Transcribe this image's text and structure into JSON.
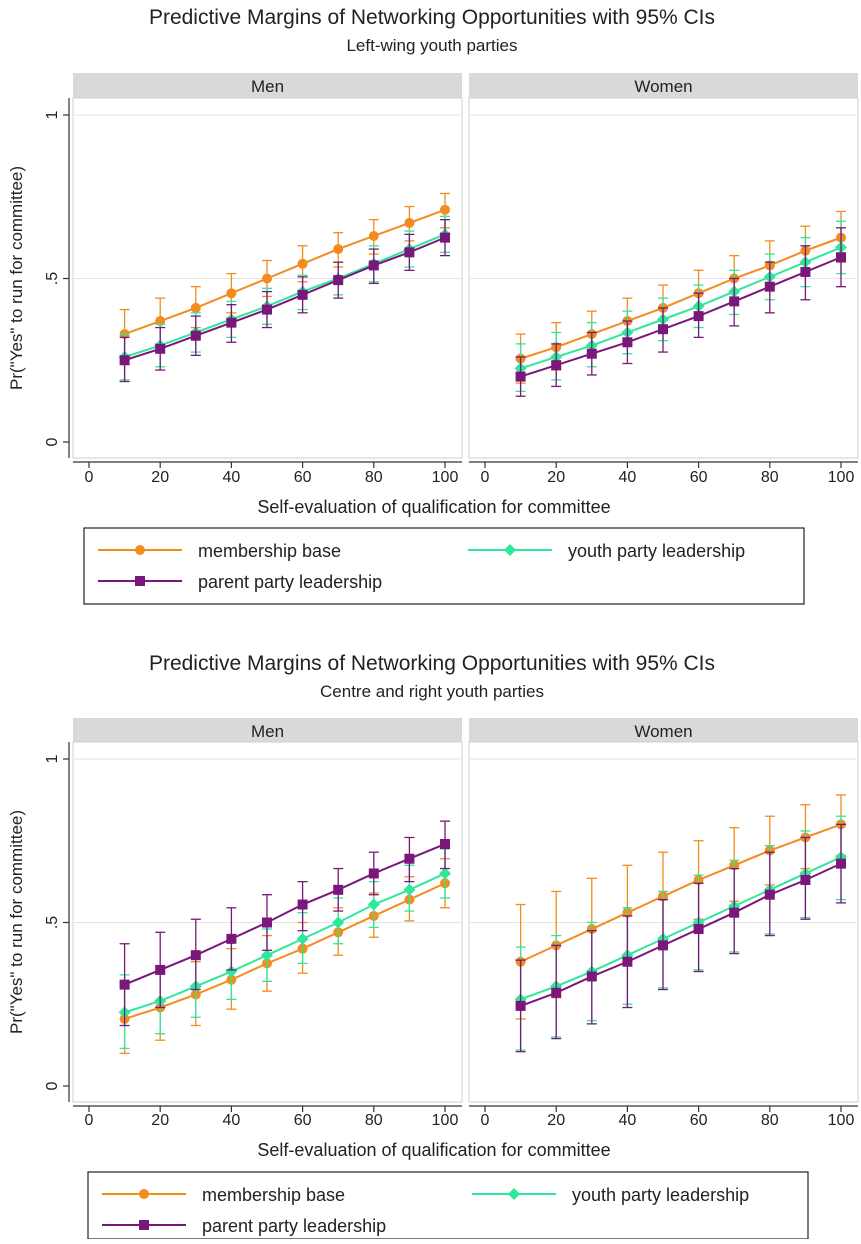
{
  "series_styles": [
    {
      "key": "membership",
      "color": "#f28c1e",
      "marker": "circle"
    },
    {
      "key": "youth",
      "color": "#2ee89a",
      "marker": "diamond"
    },
    {
      "key": "parent",
      "color": "#7a177a",
      "marker": "square"
    }
  ],
  "chart_data": [
    {
      "type": "line",
      "title": "Predictive Margins of Networking Opportunities with 95% CIs",
      "subtitle": "Left-wing youth parties",
      "xlabel": "Self-evaluation of qualification for committee",
      "ylabel": "Pr(\"Yes\" to run for committee)",
      "xlim": [
        0,
        100
      ],
      "ylim": [
        0,
        1
      ],
      "xticks": [
        0,
        20,
        40,
        60,
        80,
        100
      ],
      "yticks": [
        0,
        0.5,
        1
      ],
      "ytick_labels": [
        "0",
        ".5",
        "1"
      ],
      "grid": true,
      "legend_position": "bottom",
      "x": [
        10,
        20,
        30,
        40,
        50,
        60,
        70,
        80,
        90,
        100
      ],
      "legend": [
        "membership base",
        "youth party leadership",
        "parent party leadership"
      ],
      "panels": [
        {
          "label": "Men",
          "series": [
            {
              "name": "membership base",
              "values": [
                0.33,
                0.37,
                0.41,
                0.455,
                0.5,
                0.545,
                0.59,
                0.63,
                0.67,
                0.71
              ],
              "lower": [
                0.26,
                0.3,
                0.35,
                0.395,
                0.445,
                0.49,
                0.535,
                0.575,
                0.615,
                0.655
              ],
              "upper": [
                0.405,
                0.44,
                0.475,
                0.515,
                0.555,
                0.6,
                0.64,
                0.68,
                0.72,
                0.76
              ]
            },
            {
              "name": "youth party leadership",
              "values": [
                0.26,
                0.295,
                0.335,
                0.375,
                0.415,
                0.46,
                0.5,
                0.545,
                0.59,
                0.635
              ],
              "lower": [
                0.19,
                0.23,
                0.275,
                0.32,
                0.36,
                0.405,
                0.45,
                0.49,
                0.535,
                0.58
              ],
              "upper": [
                0.33,
                0.36,
                0.395,
                0.43,
                0.47,
                0.51,
                0.55,
                0.6,
                0.645,
                0.69
              ]
            },
            {
              "name": "parent party leadership",
              "values": [
                0.25,
                0.285,
                0.325,
                0.365,
                0.405,
                0.45,
                0.495,
                0.54,
                0.58,
                0.625
              ],
              "lower": [
                0.185,
                0.22,
                0.265,
                0.305,
                0.35,
                0.395,
                0.44,
                0.485,
                0.525,
                0.57
              ],
              "upper": [
                0.32,
                0.35,
                0.385,
                0.42,
                0.46,
                0.505,
                0.55,
                0.59,
                0.635,
                0.68
              ]
            }
          ]
        },
        {
          "label": "Women",
          "series": [
            {
              "name": "membership base",
              "values": [
                0.255,
                0.29,
                0.33,
                0.37,
                0.41,
                0.455,
                0.5,
                0.54,
                0.585,
                0.625
              ],
              "lower": [
                0.18,
                0.22,
                0.26,
                0.3,
                0.345,
                0.385,
                0.43,
                0.47,
                0.51,
                0.55
              ],
              "upper": [
                0.33,
                0.365,
                0.4,
                0.44,
                0.48,
                0.525,
                0.57,
                0.615,
                0.66,
                0.705
              ]
            },
            {
              "name": "youth party leadership",
              "values": [
                0.225,
                0.26,
                0.295,
                0.335,
                0.375,
                0.415,
                0.46,
                0.505,
                0.55,
                0.595
              ],
              "lower": [
                0.155,
                0.19,
                0.23,
                0.27,
                0.31,
                0.35,
                0.39,
                0.435,
                0.475,
                0.515
              ],
              "upper": [
                0.3,
                0.335,
                0.365,
                0.4,
                0.44,
                0.48,
                0.525,
                0.575,
                0.625,
                0.675
              ]
            },
            {
              "name": "parent party leadership",
              "values": [
                0.2,
                0.235,
                0.27,
                0.305,
                0.345,
                0.385,
                0.43,
                0.475,
                0.52,
                0.565
              ],
              "lower": [
                0.14,
                0.17,
                0.205,
                0.24,
                0.275,
                0.32,
                0.355,
                0.395,
                0.435,
                0.475
              ],
              "upper": [
                0.26,
                0.3,
                0.335,
                0.37,
                0.41,
                0.455,
                0.5,
                0.55,
                0.6,
                0.655
              ]
            }
          ]
        }
      ]
    },
    {
      "type": "line",
      "title": "Predictive Margins of Networking Opportunities with 95% CIs",
      "subtitle": "Centre and right youth parties",
      "xlabel": "Self-evaluation of qualification for committee",
      "ylabel": "Pr(\"Yes\" to run for committee)",
      "xlim": [
        0,
        100
      ],
      "ylim": [
        0,
        1
      ],
      "xticks": [
        0,
        20,
        40,
        60,
        80,
        100
      ],
      "yticks": [
        0,
        0.5,
        1
      ],
      "ytick_labels": [
        "0",
        ".5",
        "1"
      ],
      "grid": true,
      "legend_position": "bottom",
      "x": [
        10,
        20,
        30,
        40,
        50,
        60,
        70,
        80,
        90,
        100
      ],
      "legend": [
        "membership base",
        "youth party leadership",
        "parent party leadership"
      ],
      "panels": [
        {
          "label": "Men",
          "series": [
            {
              "name": "membership base",
              "values": [
                0.205,
                0.24,
                0.28,
                0.325,
                0.375,
                0.42,
                0.47,
                0.52,
                0.57,
                0.62
              ],
              "lower": [
                0.1,
                0.14,
                0.185,
                0.235,
                0.29,
                0.345,
                0.4,
                0.455,
                0.505,
                0.545
              ],
              "upper": [
                0.31,
                0.345,
                0.38,
                0.42,
                0.46,
                0.5,
                0.545,
                0.59,
                0.64,
                0.695
              ]
            },
            {
              "name": "youth party leadership",
              "values": [
                0.225,
                0.26,
                0.305,
                0.35,
                0.4,
                0.45,
                0.5,
                0.555,
                0.6,
                0.65
              ],
              "lower": [
                0.115,
                0.16,
                0.21,
                0.265,
                0.32,
                0.375,
                0.435,
                0.485,
                0.535,
                0.575
              ],
              "upper": [
                0.34,
                0.365,
                0.4,
                0.44,
                0.48,
                0.53,
                0.575,
                0.625,
                0.675,
                0.725
              ]
            },
            {
              "name": "parent party leadership",
              "values": [
                0.31,
                0.355,
                0.4,
                0.45,
                0.5,
                0.555,
                0.6,
                0.65,
                0.695,
                0.74
              ],
              "lower": [
                0.185,
                0.24,
                0.295,
                0.355,
                0.415,
                0.475,
                0.535,
                0.585,
                0.625,
                0.665
              ],
              "upper": [
                0.435,
                0.47,
                0.51,
                0.545,
                0.585,
                0.625,
                0.665,
                0.715,
                0.76,
                0.81
              ]
            }
          ]
        },
        {
          "label": "Women",
          "series": [
            {
              "name": "membership base",
              "values": [
                0.38,
                0.43,
                0.48,
                0.53,
                0.58,
                0.63,
                0.675,
                0.72,
                0.76,
                0.8
              ],
              "lower": [
                0.205,
                0.27,
                0.325,
                0.385,
                0.445,
                0.51,
                0.565,
                0.615,
                0.665,
                0.705
              ],
              "upper": [
                0.555,
                0.595,
                0.635,
                0.675,
                0.715,
                0.75,
                0.79,
                0.825,
                0.86,
                0.89
              ]
            },
            {
              "name": "youth party leadership",
              "values": [
                0.265,
                0.305,
                0.35,
                0.4,
                0.45,
                0.5,
                0.55,
                0.6,
                0.65,
                0.7
              ],
              "lower": [
                0.11,
                0.15,
                0.2,
                0.25,
                0.3,
                0.355,
                0.41,
                0.465,
                0.515,
                0.57
              ],
              "upper": [
                0.425,
                0.46,
                0.5,
                0.545,
                0.595,
                0.645,
                0.69,
                0.735,
                0.78,
                0.825
              ]
            },
            {
              "name": "parent party leadership",
              "values": [
                0.245,
                0.285,
                0.335,
                0.38,
                0.43,
                0.48,
                0.53,
                0.585,
                0.63,
                0.68
              ],
              "lower": [
                0.105,
                0.145,
                0.19,
                0.24,
                0.295,
                0.35,
                0.405,
                0.46,
                0.51,
                0.56
              ],
              "upper": [
                0.385,
                0.43,
                0.475,
                0.52,
                0.57,
                0.62,
                0.665,
                0.715,
                0.76,
                0.8
              ]
            }
          ]
        }
      ]
    }
  ]
}
